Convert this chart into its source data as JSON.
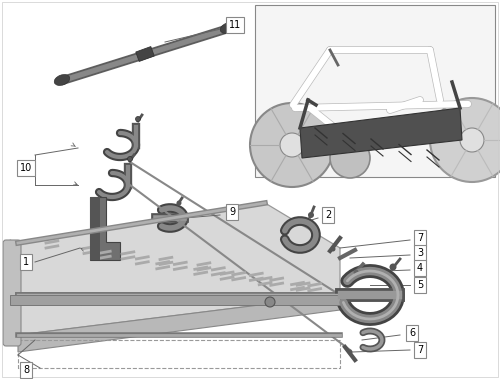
{
  "bg_color": "#ffffff",
  "fig_width": 5.0,
  "fig_height": 3.79,
  "dpi": 100,
  "line_color": "#666666",
  "label_box_color": "#ffffff",
  "label_border_color": "#888888",
  "tray_top_color": "#d4d4d4",
  "tray_side_color": "#b0b0b0",
  "tray_bottom_color": "#c8c8c8",
  "tray_rim_color": "#888888",
  "part_dark": "#606060",
  "part_mid": "#909090",
  "part_light": "#c0c0c0",
  "inset_bg": "#f5f5f5",
  "inset_border": "#888888",
  "rod_dark": "#555555",
  "rod_mid": "#888888"
}
